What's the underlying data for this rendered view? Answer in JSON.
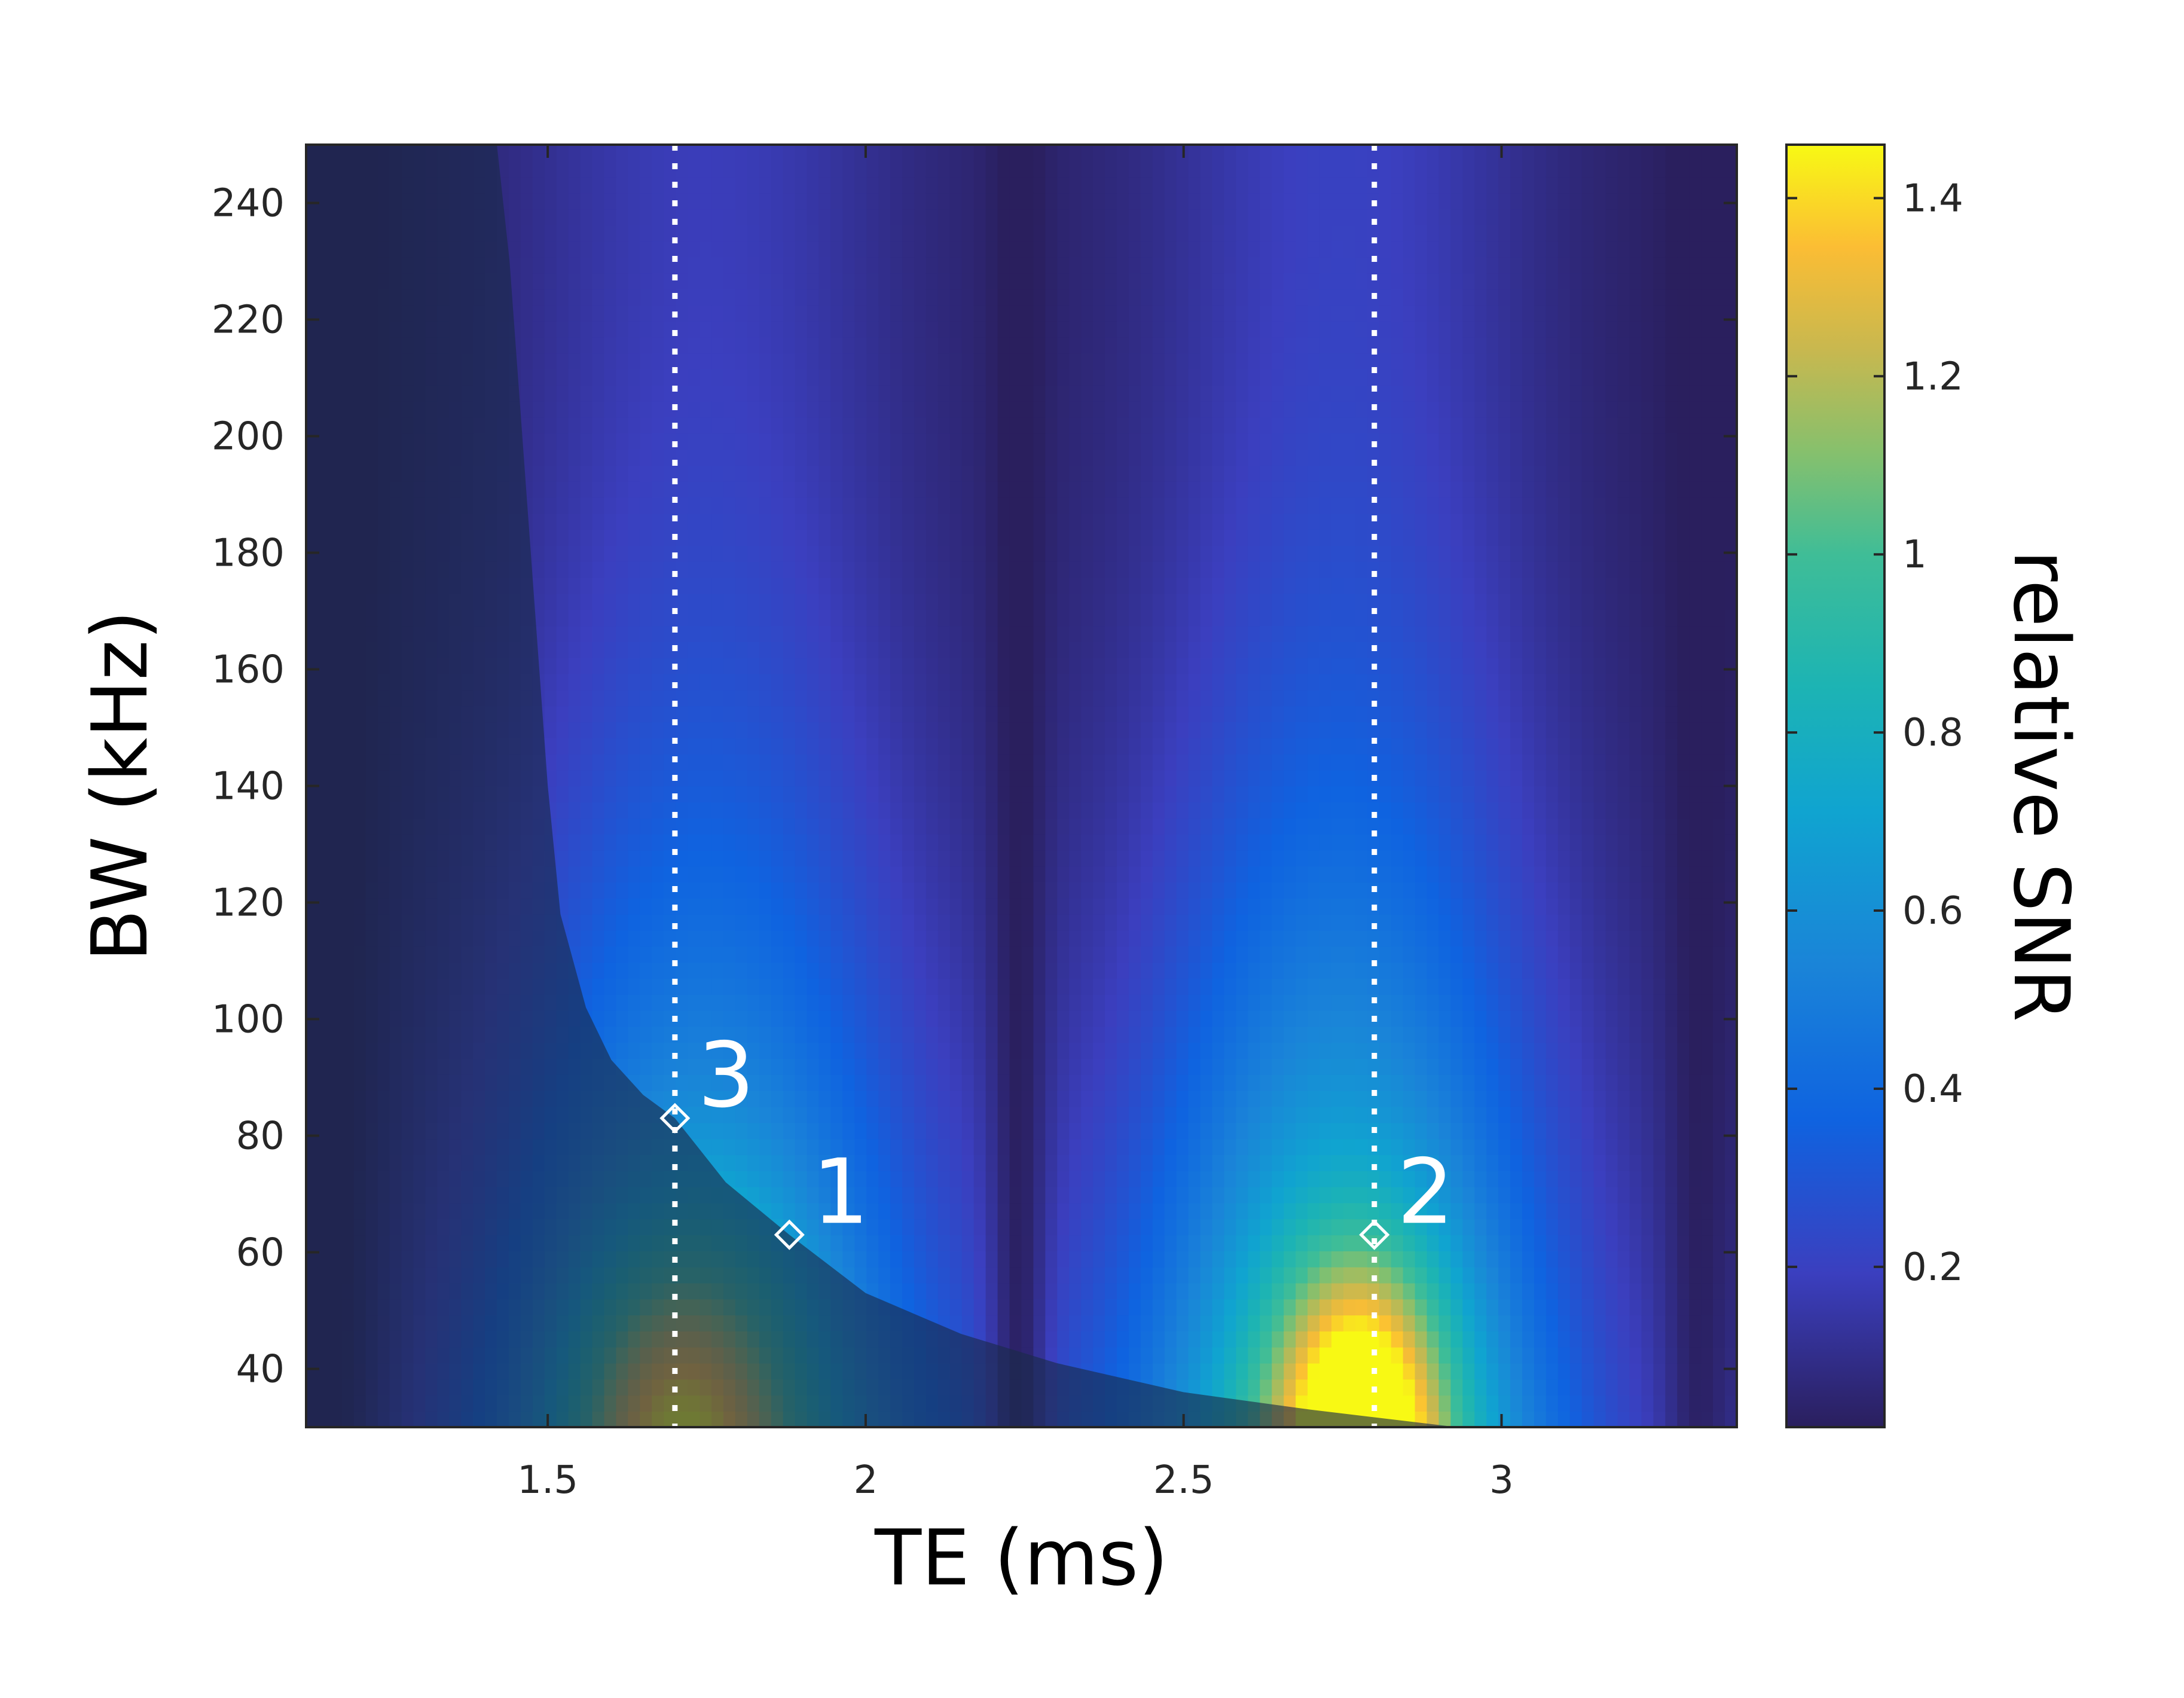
{
  "chart_data": {
    "type": "heatmap",
    "title": "",
    "xlabel": "TE (ms)",
    "ylabel": "BW (kHz)",
    "colorbar_label": "relative SNR",
    "xlim": [
      1.12,
      3.37
    ],
    "ylim": [
      30,
      250
    ],
    "clim": [
      0.02,
      1.46
    ],
    "colormap": "parula",
    "x_ticks": [
      1.5,
      2,
      2.5,
      3
    ],
    "x_tick_labels": [
      "1.5",
      "2",
      "2.5",
      "3"
    ],
    "y_ticks": [
      40,
      60,
      80,
      100,
      120,
      140,
      160,
      180,
      200,
      220,
      240
    ],
    "y_tick_labels": [
      "40",
      "60",
      "80",
      "100",
      "120",
      "140",
      "160",
      "180",
      "200",
      "220",
      "240"
    ],
    "colorbar_ticks": [
      0.2,
      0.4,
      0.6,
      0.8,
      1,
      1.2,
      1.4
    ],
    "colorbar_tick_labels": [
      "0.2",
      "0.4",
      "0.6",
      "0.8",
      "1",
      "1.2",
      "1.4"
    ],
    "dotted_lines_te": [
      1.7,
      2.8
    ],
    "shaded_region": {
      "description_boundary_te": [
        1.42,
        1.44,
        1.46,
        1.48,
        1.5,
        1.52,
        1.53,
        1.56,
        1.6,
        1.65,
        1.7,
        1.78,
        1.88,
        2.0,
        2.15,
        2.3,
        2.5,
        2.7,
        2.93
      ],
      "description_boundary_bw": [
        250,
        230,
        200,
        170,
        140,
        118,
        114,
        102,
        93,
        87,
        83,
        72,
        63,
        53,
        46,
        41,
        36,
        33,
        30
      ]
    },
    "points": [
      {
        "label": "1",
        "te": 1.88,
        "bw": 63
      },
      {
        "label": "2",
        "te": 2.8,
        "bw": 63
      },
      {
        "label": "3",
        "te": 1.7,
        "bw": 83
      }
    ]
  }
}
